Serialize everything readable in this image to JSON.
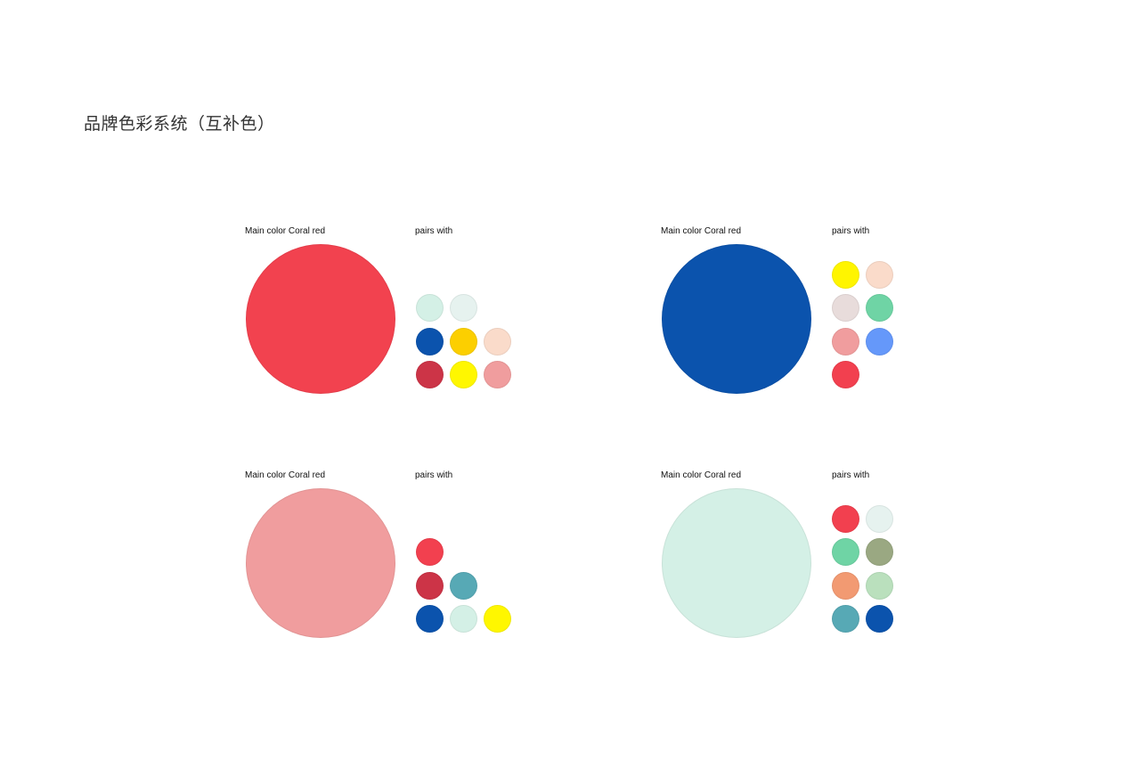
{
  "title": "品牌色彩系统（互补色）",
  "panels": [
    {
      "main_label": "Main color Coral red",
      "pairs_label": "pairs with",
      "main_color": "#f2424f",
      "swatch_rows": [
        [
          "#d4f0e6",
          "#e6f2ef"
        ],
        [
          "#0b53ad",
          "#fccf00",
          "#fadbca"
        ],
        [
          "#cc3447",
          "#fff700",
          "#f09d9e"
        ]
      ]
    },
    {
      "main_label": "Main color Coral red",
      "pairs_label": "pairs with",
      "main_color": "#0b53ad",
      "swatch_rows": [
        [
          "#fff500",
          "#fadbca"
        ],
        [
          "#e8dcdb",
          "#6fd4a5"
        ],
        [
          "#f09d9e",
          "#6598fa"
        ],
        [
          "#f2404f"
        ]
      ]
    },
    {
      "main_label": "Main color Coral red",
      "pairs_label": "pairs with",
      "main_color": "#f09d9e",
      "swatch_rows": [
        [
          "#f2404f"
        ],
        [
          "#cc3447",
          "#57a9b5"
        ],
        [
          "#0b53ad",
          "#d4f0e6",
          "#fff700"
        ]
      ]
    },
    {
      "main_label": "Main color Coral red",
      "pairs_label": "pairs with",
      "main_color": "#d4f0e6",
      "swatch_rows": [
        [
          "#f2404f",
          "#e6f2ef"
        ],
        [
          "#6fd4a5",
          "#9aa882"
        ],
        [
          "#f29a72",
          "#bae0bd"
        ],
        [
          "#57a9b5",
          "#0b53ad"
        ]
      ]
    }
  ]
}
